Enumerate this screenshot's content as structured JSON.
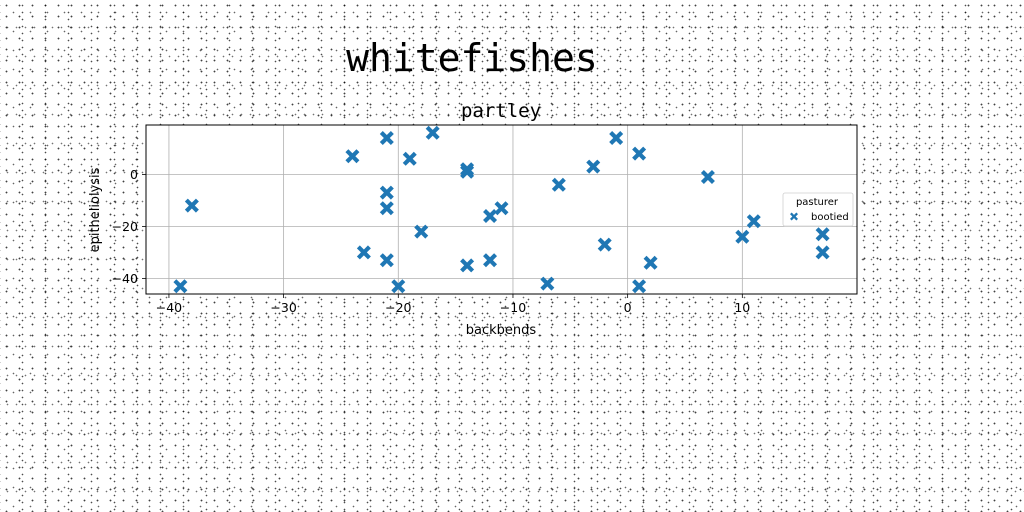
{
  "figure": {
    "suptitle": "whitefishes"
  },
  "chart_data": {
    "type": "scatter",
    "title": "partley",
    "xlabel": "backbends",
    "ylabel": "epitheliolysis",
    "xlim": [
      -42,
      20
    ],
    "ylim": [
      -46,
      19
    ],
    "xticks": [
      -40,
      -30,
      -20,
      -10,
      0,
      10
    ],
    "yticks": [
      -40,
      -20,
      0
    ],
    "grid": true,
    "legend": {
      "title": "pasturer",
      "placement": "right",
      "entries": [
        "bootied"
      ]
    },
    "marker": "X",
    "marker_color": "#1f77b4",
    "series": [
      {
        "name": "bootied",
        "points": [
          [
            -39,
            -43
          ],
          [
            -38,
            -12
          ],
          [
            -24,
            7
          ],
          [
            -23,
            -30
          ],
          [
            -21,
            14
          ],
          [
            -21,
            -7
          ],
          [
            -21,
            -13
          ],
          [
            -21,
            -33
          ],
          [
            -20,
            -43
          ],
          [
            -19,
            6
          ],
          [
            -18,
            -22
          ],
          [
            -17,
            16
          ],
          [
            -14,
            2
          ],
          [
            -14,
            1
          ],
          [
            -14,
            -35
          ],
          [
            -12,
            -16
          ],
          [
            -12,
            -33
          ],
          [
            -11,
            -13
          ],
          [
            -7,
            -42
          ],
          [
            -6,
            -4
          ],
          [
            -3,
            3
          ],
          [
            -2,
            -27
          ],
          [
            -1,
            14
          ],
          [
            1,
            8
          ],
          [
            1,
            -43
          ],
          [
            2,
            -34
          ],
          [
            7,
            -1
          ],
          [
            10,
            -24
          ],
          [
            11,
            -18
          ],
          [
            17,
            -23
          ],
          [
            17,
            -30
          ]
        ]
      }
    ]
  }
}
